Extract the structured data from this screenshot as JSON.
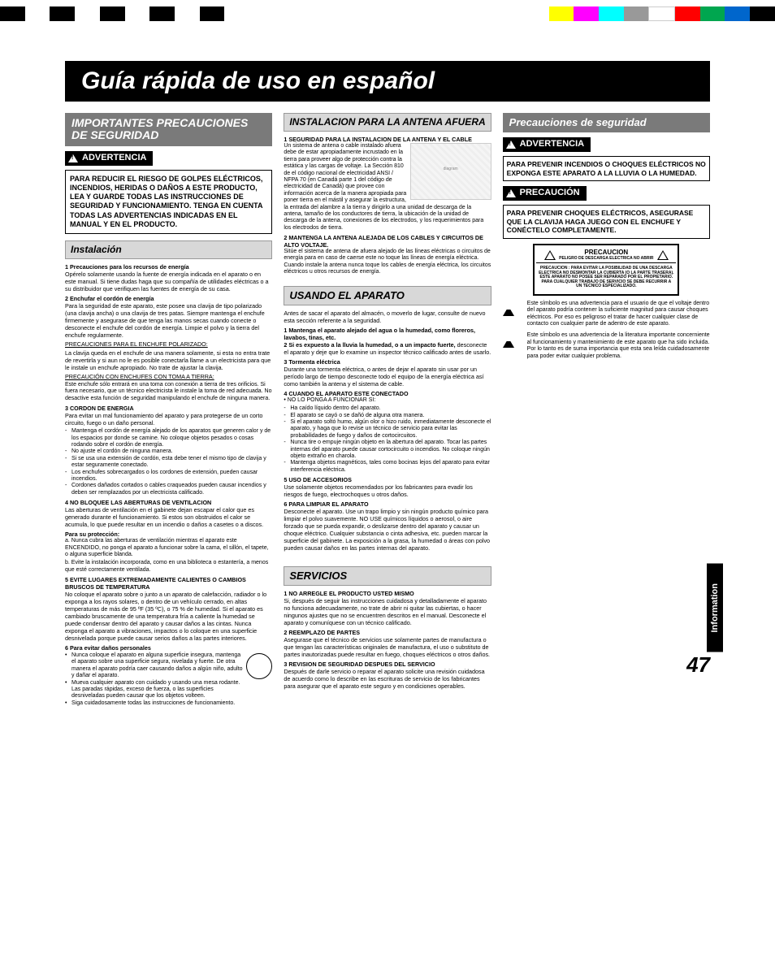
{
  "colorbar_left": [
    "#000000",
    "#ffffff",
    "#000000",
    "#ffffff",
    "#000000",
    "#ffffff",
    "#000000",
    "#ffffff",
    "#000000"
  ],
  "colorbar_right": [
    "#ffff00",
    "#ff00ff",
    "#00ffff",
    "#999999",
    "#ffffff",
    "#ff0000",
    "#00a64f",
    "#0066cc",
    "#000000"
  ],
  "main_title": "Guía rápida de uso en español",
  "page_number": "47",
  "side_tab": "Information",
  "col1": {
    "header": "IMPORTANTES PRECAUCIONES DE SEGURIDAD",
    "warn": "ADVERTENCIA",
    "box": "PARA REDUCIR EL RIESGO DE GOLPES ELÉCTRICOS, INCENDIOS, HERIDAS O DAÑOS A ESTE PRODUCTO, LEA Y GUARDE TODAS LAS INSTRUCCIONES DE SEGURIDAD Y FUNCIONAMIENTO. TENGA EN CUENTA TODAS LAS ADVERTENCIAS INDICADAS EN EL MANUAL Y EN EL PRODUCTO.",
    "inst_header": "Instalación",
    "s1_h": "1 Precauciones para los recursos de energía",
    "s1_t": "Opérelo solamente usando la fuente de energía indicada en el aparato o en este manual. Si tiene dudas haga que su compañía de utilidades eléctricas o a su distribuidor que verifiquen las fuentes de energía de su casa.",
    "s2_h": "2 Enchufar el cordón de energía",
    "s2_t": "Para la seguridad de este aparato, este posee una clavija de tipo polarizado (una clavija ancha) o una clavija de tres patas. Siempre mantenga el enchufe firmemente y asegurase de que tenga las manos secas cuando conecte o desconecte el enchufe del cordón de energía. Limpie el polvo y la tierra del enchufe regularmente.",
    "s2_u1": "PRECAUCIONES PARA EL ENCHUFE POLARIZADO:",
    "s2_t2": "La clavija queda en el enchufe de una manera solamente, si esta no entra trate de revertirla y si aun no le es posible conectarla llame a un electricista para que le instale un enchufe apropiado. No trate de ajustar la clavija.",
    "s2_u2": "PRECAUCIÓN CON ENCHUFES CON TOMA A TIERRA:",
    "s2_t3": "Este enchufe sólo entrará en una toma con conexión a tierra de tres orificios. Si fuera necesario, que un técnico electricista le instale la toma de red adecuada. No desactive esta función de seguridad manipulando el enchufe de ninguna manera.",
    "s3_h": "3 CORDON DE ENERGIA",
    "s3_t": "Para evitar un mal funcionamiento del aparato y para protegerse de un corto circuito, fuego o un daño personal.",
    "s3_bullets": [
      "Mantenga el cordón de energía alejado de los aparatos que generen calor y de los espacios por donde se camine. No coloque objetos pesados o cosas rodando sobre el cordón de energía.",
      "No ajuste el cordón de ninguna manera.",
      "Si se usa una extensión de cordón, esta debe tener el mismo tipo de clavija y estar seguramente conectado.",
      "Los enchufes sobrecargados o los cordones de extensión, pueden causar incendios.",
      "Cordones dañados cortados o cables craqueados pueden causar incendios y deben ser remplazados por un electricista calificado."
    ],
    "s4_h": "4 NO BLOQUEE LAS ABERTURAS DE VENTILACION",
    "s4_t": "Las aberturas de ventilación en el gabinete dejan escapar el calor que es generado durante el funcionamiento. Si estos son obstruidos el calor se acumula, lo que puede resultar en un incendio o daños a casetes o a discos.",
    "s4_sub": "Para su protección:",
    "s4_a": "a. Nunca cubra las aberturas de ventilación mientras el aparato este ENCENDIDO, no ponga el aparato a funcionar sobre la cama, el sillón, el tapete, o alguna superficie blanda.",
    "s4_b": "b. Evite la instalación incorporada, como en una biblioteca o estantería, a menos que esté correctamente ventilada.",
    "s5_h": "5 EVITE LUGARES EXTREMADAMENTE CALIENTES O CAMBIOS BRUSCOS DE TEMPERATURA",
    "s5_t": "No coloque el aparato sobre o junto a un aparato de calefacción, radiador o lo exponga a los rayos solares, o dentro de un vehículo cerrado, en altas temperaturas de más de 95 ºF (35 ºC), o 75 % de humedad. Si el aparato es cambiado bruscamente de una temperatura fría a caliente la humedad se puede condensar dentro del aparato y causar daños a las cintas. Nunca exponga el aparato a vibraciones, impactos o lo coloque en una superficie desnivelada porque puede causar serios daños a las partes interiores.",
    "s6_h": "6 Para evitar daños personales",
    "s6_bullets": [
      "Nunca coloque el aparato en alguna superficie insegura, mantenga el aparato sobre una superficie segura, nivelada y fuerte. De otra manera el aparato podría caer causando daños a algún niño, adulto y dañar el aparato.",
      "Mueva cualquier aparato con cuidado y usando una mesa rodante. Las paradas rápidas, exceso de fuerza, o las superficies desniveladas pueden causar que los objetos volteen.",
      "Siga cuidadosamente todas las instrucciones de funcionamiento."
    ]
  },
  "col2": {
    "ant_header": "INSTALACION PARA LA  ANTENA   AFUERA",
    "a1_h": "1  SEGURIDAD PARA LA INSTALACION DE LA ANTENA Y EL CABLE",
    "a1_t": "Un sistema de antena o cable instalado afuera debe de estar apropiadamente incrustado en la tierra para proveer algo de protección contra la estática y las cargas de voltaje. La Sección 810 de el código nacional de electricidad ANSI / NFPA 70 (en Canadá parte 1 del código de electricidad de Canadá) que provee con información acerca de la manera apropiada para poner tierra en el mástil y asegurar la estructura, la entrada del alambre a la tierra y dirigirlo a una unidad de descarga de la antena, tamaño de los conductores de tierra, la ubicación de la unidad de descarga de la antena, conexiones de los electrodos, y los requerimientos para los electrodos de tierra.",
    "a2_h": "2  MANTENGA LA ANTENA ALEJADA DE LOS CABLES Y CIRCUITOS DE ALTO VOLTAJE.",
    "a2_t": "Sitúe el sistema de antena de afuera alejado de las líneas eléctricas o circuitos de energía para en caso de caerse este no toque las líneas de energía eléctrica. Cuando instale la antena nunca toque los cables de energía eléctrica, los circuitos eléctricos u otros recursos de energía.",
    "use_header": "USANDO EL APARATO",
    "u_intro": "Antes de sacar el aparato del almacén, o moverlo de lugar, consulte de nuevo esta sección referente a la seguridad.",
    "u1_h": "1 Mantenga el aparato alejado del agua o la humedad, como floreros, lavabos, tinas, etc.",
    "u2_h": "2 Si es expuesto a la lluvia la humedad, o a un impacto fuerte,",
    "u2_t": " desconecte el aparato y deje que lo examine un inspector técnico calificado antes de usarlo.",
    "u3_h": "3 Tormenta eléctrica",
    "u3_t": "Durante una tormenta eléctrica, o antes de dejar el aparato sin usar por un período largo de tiempo desconecte todo el equipo de la energía eléctrica así como también la antena y el sistema de cable.",
    "u4_h": "4 CUANDO EL APARATO ESTE CONECTADO",
    "u4_sub": "NO LO PONGA A FUNCIONAR SI:",
    "u4_bullets": [
      "Ha caído líquido dentro del aparato.",
      "El aparato se cayó o se dañó de alguna otra manera.",
      "Si el aparato soltó humo, algún olor o hizo ruido, inmediatamente desconecte el aparato, y haga que lo revise un técnico de servicio para evitar las probabilidades de fuego y daños de cortocircuitos.",
      "Nunca tire o empuje ningún objeto en la abertura del aparato. Tocar las partes internas del aparato puede causar cortocircuito o incendios. No coloque ningún objeto extraño en charola.",
      "Mantenga objetos magnéticos, tales como bocinas lejos del aparato para evitar interferencia eléctrica."
    ],
    "u5_h": "5 USO DE ACCESORIOS",
    "u5_t": "Use solamente objetos recomendados por los fabricantes para evadir los riesgos de fuego, electrochoques u otros daños.",
    "u6_h": "6 PARA LIMPIAR EL APARATO",
    "u6_t": "Desconecte el aparato. Use un trapo limpio y sin ningún producto químico para limpiar el polvo suavemente. NO USE químicos líquidos o aerosol, o aire forzado que se pueda expandir, o deslizarse dentro del aparato y causar un choque eléctrico. Cualquier substancia o cinta adhesiva, etc. pueden marcar la superficie del gabinete. La exposición a la grasa, la humedad o áreas con polvo pueden causar daños en las partes internas del aparato.",
    "serv_header": "SERVICIOS",
    "sv1_h": "1 NO ARREGLE EL PRODUCTO USTED MISMO",
    "sv1_t": "Si, después de seguir las instrucciones cuidadosa y detalladamente el aparato no funciona adecuadamente, no trate de abrir ni quitar las cubiertas, o hacer ningunos ajustes que no se encuentren descritos en el manual. Desconecte el aparato y comuníquese con un técnico calificado.",
    "sv2_h": "2 REEMPLAZO DE PARTES",
    "sv2_t": "Asegurase que el técnico de servicios use solamente partes de manufactura o que tengan las características originales de manufactura, el uso o substituto de partes inautorizadas puede resultar en fuego, choques eléctricos o otros daños.",
    "sv3_h": "3 REVISION DE SEGURIDAD DESPUES DEL SERVICIO",
    "sv3_t": "Después de darle servicio o reparar el aparato solicite una revisión cuidadosa de acuerdo como lo describe en las escrituras de servicio de los fabricantes para asegurar que el aparato este seguro y en condiciones operables."
  },
  "col3": {
    "header": "Precauciones de seguridad",
    "warn": "ADVERTENCIA",
    "box1": "PARA PREVENIR INCENDIOS O CHOQUES ELÉCTRICOS NO EXPONGA ESTE APARATO A LA LLUVIA O LA HUMEDAD.",
    "prec": "PRECAUCIÓN",
    "box2": "PARA PREVENIR CHOQUES ELÉCTRICOS, ASEGURASE QUE LA CLAVIJA HAGA JUEGO CON EL ENCHUFE Y CONÉCTELO COMPLETAMENTE.",
    "cb_top": "PRECAUCION",
    "cb_sub": "PELIGRO DE DESCARGA ELECTRICA NO ABRIR",
    "cb_fine": "PRECAUCION : PARA EVITAR LA POSIBILIDAD DE UNA DESCARGA ELECTRICA NO DESMONTAR LA CUBIERTA (O LA PARTE TRASERA). ESTE APARATO NO POSEE SER REPARADO POR EL PROPIETARIO. PARA CUALQUIER TRABAJO DE SERVICIO SE DEBE RECURRIR A UN TECNICO ESPECIALIZADO.",
    "sym1": "Este símbolo es una advertencia para el usuario de que el voltaje dentro del aparato podría contener la suficiente magnitud para causar choques eléctricos. Por eso es peligroso el tratar de hacer cualquier clase de contacto con cualquier parte de adentro de este aparato.",
    "sym2": "Este símbolo es una advertencia de la literatura importante concerniente al funcionamiento y mantenimiento de este aparato que ha sido incluida. Por lo tanto es de suma importancia que esta sea leída cuidadosamente para poder evitar cualquier problema."
  }
}
